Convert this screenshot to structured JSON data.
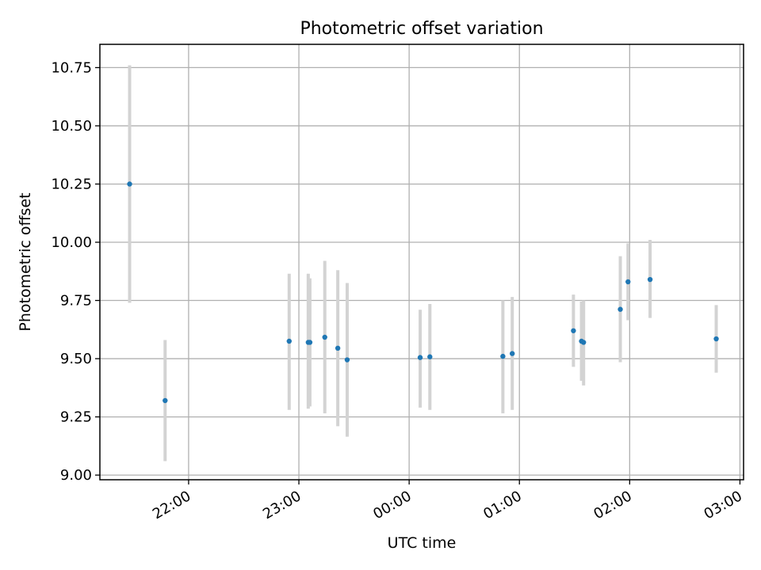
{
  "chart_data": {
    "type": "scatter",
    "title": "Photometric offset variation",
    "xlabel": "UTC time",
    "ylabel": "Photometric offset",
    "xlim_hours": [
      21.1953,
      27.0328
    ],
    "ylim": [
      8.98,
      10.85
    ],
    "grid": true,
    "x_ticks": [
      {
        "label": "22:00",
        "hours": 22.0
      },
      {
        "label": "23:00",
        "hours": 23.0
      },
      {
        "label": "00:00",
        "hours": 24.0
      },
      {
        "label": "01:00",
        "hours": 25.0
      },
      {
        "label": "02:00",
        "hours": 26.0
      },
      {
        "label": "03:00",
        "hours": 27.0
      }
    ],
    "y_ticks": [
      {
        "label": "9.00",
        "value": 9.0
      },
      {
        "label": "9.25",
        "value": 9.25
      },
      {
        "label": "9.50",
        "value": 9.5
      },
      {
        "label": "9.75",
        "value": 9.75
      },
      {
        "label": "10.00",
        "value": 10.0
      },
      {
        "label": "10.25",
        "value": 10.25
      },
      {
        "label": "10.50",
        "value": 10.5
      },
      {
        "label": "10.75",
        "value": 10.75
      }
    ],
    "points": [
      {
        "time": "21:27",
        "hours": 21.465,
        "value": 10.25,
        "err_low": 9.74,
        "err_high": 10.76
      },
      {
        "time": "21:47",
        "hours": 21.787,
        "value": 9.32,
        "err_low": 9.06,
        "err_high": 9.58
      },
      {
        "time": "22:54",
        "hours": 22.912,
        "value": 9.575,
        "err_low": 9.28,
        "err_high": 9.865
      },
      {
        "time": "23:05",
        "hours": 23.085,
        "value": 9.57,
        "err_low": 9.285,
        "err_high": 9.865
      },
      {
        "time": "23:06",
        "hours": 23.1,
        "value": 9.57,
        "err_low": 9.295,
        "err_high": 9.845
      },
      {
        "time": "23:14",
        "hours": 23.235,
        "value": 9.592,
        "err_low": 9.265,
        "err_high": 9.92
      },
      {
        "time": "23:21",
        "hours": 23.353,
        "value": 9.545,
        "err_low": 9.21,
        "err_high": 9.88
      },
      {
        "time": "23:26",
        "hours": 23.438,
        "value": 9.495,
        "err_low": 9.165,
        "err_high": 9.825
      },
      {
        "time": "00:05",
        "hours": 24.1,
        "value": 9.505,
        "err_low": 9.29,
        "err_high": 9.71
      },
      {
        "time": "00:11",
        "hours": 24.188,
        "value": 9.508,
        "err_low": 9.28,
        "err_high": 9.735
      },
      {
        "time": "00:51",
        "hours": 24.85,
        "value": 9.51,
        "err_low": 9.265,
        "err_high": 9.75
      },
      {
        "time": "00:56",
        "hours": 24.935,
        "value": 9.522,
        "err_low": 9.28,
        "err_high": 9.765
      },
      {
        "time": "01:30",
        "hours": 25.49,
        "value": 9.62,
        "err_low": 9.465,
        "err_high": 9.775
      },
      {
        "time": "01:34",
        "hours": 25.563,
        "value": 9.575,
        "err_low": 9.405,
        "err_high": 9.745
      },
      {
        "time": "01:35",
        "hours": 25.582,
        "value": 9.57,
        "err_low": 9.385,
        "err_high": 9.75
      },
      {
        "time": "01:55",
        "hours": 25.915,
        "value": 9.712,
        "err_low": 9.485,
        "err_high": 9.94
      },
      {
        "time": "01:59",
        "hours": 25.985,
        "value": 9.83,
        "err_low": 9.665,
        "err_high": 9.995
      },
      {
        "time": "02:11",
        "hours": 26.185,
        "value": 9.84,
        "err_low": 9.675,
        "err_high": 10.01
      },
      {
        "time": "02:47",
        "hours": 26.785,
        "value": 9.585,
        "err_low": 9.44,
        "err_high": 9.73
      }
    ],
    "colors": {
      "marker": "#1f77b4",
      "errorbar": "#d3d3d3",
      "grid": "#b0b0b0",
      "axes": "#000000"
    }
  }
}
